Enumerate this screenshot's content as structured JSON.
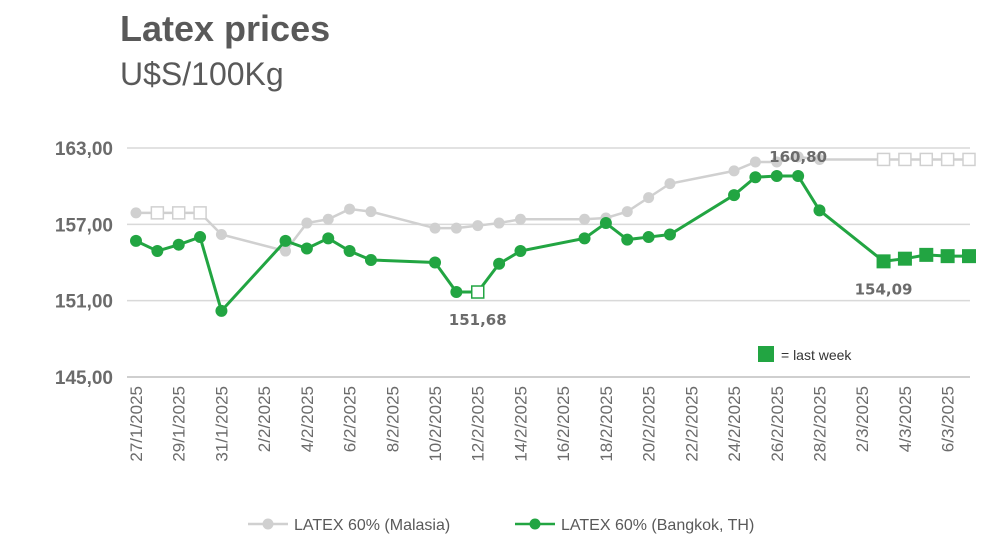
{
  "header": {
    "title": "Latex prices",
    "subtitle": "U$S/100Kg"
  },
  "note": {
    "label": "= last week",
    "color": "#22A542"
  },
  "colors": {
    "malaysia": "#D0D0D0",
    "bangkok": "#22A542",
    "grid": "#D9D9D9",
    "text": "#595959"
  },
  "chart_data": {
    "type": "line",
    "ylim": [
      145,
      163
    ],
    "yticks": [
      "163,00",
      "157,00",
      "151,00",
      "145,00"
    ],
    "ytick_values": [
      163,
      157,
      151,
      145
    ],
    "grid": true,
    "legend": "bottom",
    "x_dates": [
      "27/1/2025",
      "28/1/2025",
      "29/1/2025",
      "30/1/2025",
      "31/1/2025",
      "1/2/2025",
      "2/2/2025",
      "3/2/2025",
      "4/2/2025",
      "5/2/2025",
      "6/2/2025",
      "7/2/2025",
      "8/2/2025",
      "9/2/2025",
      "10/2/2025",
      "11/2/2025",
      "12/2/2025",
      "13/2/2025",
      "14/2/2025",
      "15/2/2025",
      "16/2/2025",
      "17/2/2025",
      "18/2/2025",
      "19/2/2025",
      "20/2/2025",
      "21/2/2025",
      "22/2/2025",
      "23/2/2025",
      "24/2/2025",
      "25/2/2025",
      "26/2/2025",
      "27/2/2025",
      "28/2/2025",
      "1/3/2025",
      "2/3/2025",
      "3/3/2025",
      "4/3/2025",
      "5/3/2025",
      "6/3/2025",
      "7/3/2025"
    ],
    "x_tick_labels": [
      "27/1/2025",
      "29/1/2025",
      "31/1/2025",
      "2/2/2025",
      "4/2/2025",
      "6/2/2025",
      "8/2/2025",
      "10/2/2025",
      "12/2/2025",
      "14/2/2025",
      "16/2/2025",
      "18/2/2025",
      "20/2/2025",
      "22/2/2025",
      "24/2/2025",
      "26/2/2025",
      "28/2/2025",
      "2/3/2025",
      "4/3/2025",
      "6/3/2025"
    ],
    "series": [
      {
        "name": "LATEX 60% (Malasia)",
        "color": "#D0D0D0",
        "points": [
          {
            "x": "27/1/2025",
            "y": 157.9
          },
          {
            "x": "28/1/2025",
            "y": 157.9,
            "hollow": true
          },
          {
            "x": "29/1/2025",
            "y": 157.9,
            "hollow": true
          },
          {
            "x": "30/1/2025",
            "y": 157.9,
            "hollow": true
          },
          {
            "x": "31/1/2025",
            "y": 156.2
          },
          {
            "x": "3/2/2025",
            "y": 154.9
          },
          {
            "x": "4/2/2025",
            "y": 157.1
          },
          {
            "x": "5/2/2025",
            "y": 157.4
          },
          {
            "x": "6/2/2025",
            "y": 158.2
          },
          {
            "x": "7/2/2025",
            "y": 158.0
          },
          {
            "x": "10/2/2025",
            "y": 156.7
          },
          {
            "x": "11/2/2025",
            "y": 156.7
          },
          {
            "x": "12/2/2025",
            "y": 156.9
          },
          {
            "x": "13/2/2025",
            "y": 157.1
          },
          {
            "x": "14/2/2025",
            "y": 157.4
          },
          {
            "x": "17/2/2025",
            "y": 157.4
          },
          {
            "x": "18/2/2025",
            "y": 157.5
          },
          {
            "x": "19/2/2025",
            "y": 158.0
          },
          {
            "x": "20/2/2025",
            "y": 159.1
          },
          {
            "x": "21/2/2025",
            "y": 160.2
          },
          {
            "x": "24/2/2025",
            "y": 161.2
          },
          {
            "x": "25/2/2025",
            "y": 161.9
          },
          {
            "x": "26/2/2025",
            "y": 161.9
          },
          {
            "x": "27/2/2025",
            "y": 162.3
          },
          {
            "x": "28/2/2025",
            "y": 162.1
          },
          {
            "x": "3/3/2025",
            "y": 162.1,
            "hollow": true
          },
          {
            "x": "4/3/2025",
            "y": 162.1,
            "hollow": true
          },
          {
            "x": "5/3/2025",
            "y": 162.1,
            "hollow": true
          },
          {
            "x": "6/3/2025",
            "y": 162.1,
            "hollow": true
          },
          {
            "x": "7/3/2025",
            "y": 162.1,
            "hollow": true
          }
        ]
      },
      {
        "name": "LATEX 60% (Bangkok, TH)",
        "color": "#22A542",
        "points": [
          {
            "x": "27/1/2025",
            "y": 155.7
          },
          {
            "x": "28/1/2025",
            "y": 154.9
          },
          {
            "x": "29/1/2025",
            "y": 155.4
          },
          {
            "x": "30/1/2025",
            "y": 156.0
          },
          {
            "x": "31/1/2025",
            "y": 150.2
          },
          {
            "x": "3/2/2025",
            "y": 155.7
          },
          {
            "x": "4/2/2025",
            "y": 155.1
          },
          {
            "x": "5/2/2025",
            "y": 155.9
          },
          {
            "x": "6/2/2025",
            "y": 154.9
          },
          {
            "x": "7/2/2025",
            "y": 154.2
          },
          {
            "x": "10/2/2025",
            "y": 154.0
          },
          {
            "x": "11/2/2025",
            "y": 151.68
          },
          {
            "x": "12/2/2025",
            "y": 151.68,
            "hollow": true
          },
          {
            "x": "13/2/2025",
            "y": 153.9
          },
          {
            "x": "14/2/2025",
            "y": 154.9
          },
          {
            "x": "17/2/2025",
            "y": 155.9
          },
          {
            "x": "18/2/2025",
            "y": 157.1
          },
          {
            "x": "19/2/2025",
            "y": 155.8
          },
          {
            "x": "20/2/2025",
            "y": 156.0
          },
          {
            "x": "21/2/2025",
            "y": 156.2
          },
          {
            "x": "24/2/2025",
            "y": 159.3
          },
          {
            "x": "25/2/2025",
            "y": 160.7
          },
          {
            "x": "26/2/2025",
            "y": 160.8
          },
          {
            "x": "27/2/2025",
            "y": 160.8
          },
          {
            "x": "28/2/2025",
            "y": 158.1
          },
          {
            "x": "3/3/2025",
            "y": 154.09,
            "square": true
          },
          {
            "x": "4/3/2025",
            "y": 154.3,
            "square": true
          },
          {
            "x": "5/3/2025",
            "y": 154.6,
            "square": true
          },
          {
            "x": "6/3/2025",
            "y": 154.5,
            "square": true
          },
          {
            "x": "7/3/2025",
            "y": 154.5,
            "square": true
          }
        ]
      }
    ],
    "annotations": [
      {
        "text": "160,80",
        "x": "27/2/2025",
        "y": 160.8,
        "position": "above"
      },
      {
        "text": "151,68",
        "x": "12/2/2025",
        "y": 151.68,
        "position": "below"
      },
      {
        "text": "154,09",
        "x": "3/3/2025",
        "y": 154.09,
        "position": "below"
      }
    ]
  }
}
